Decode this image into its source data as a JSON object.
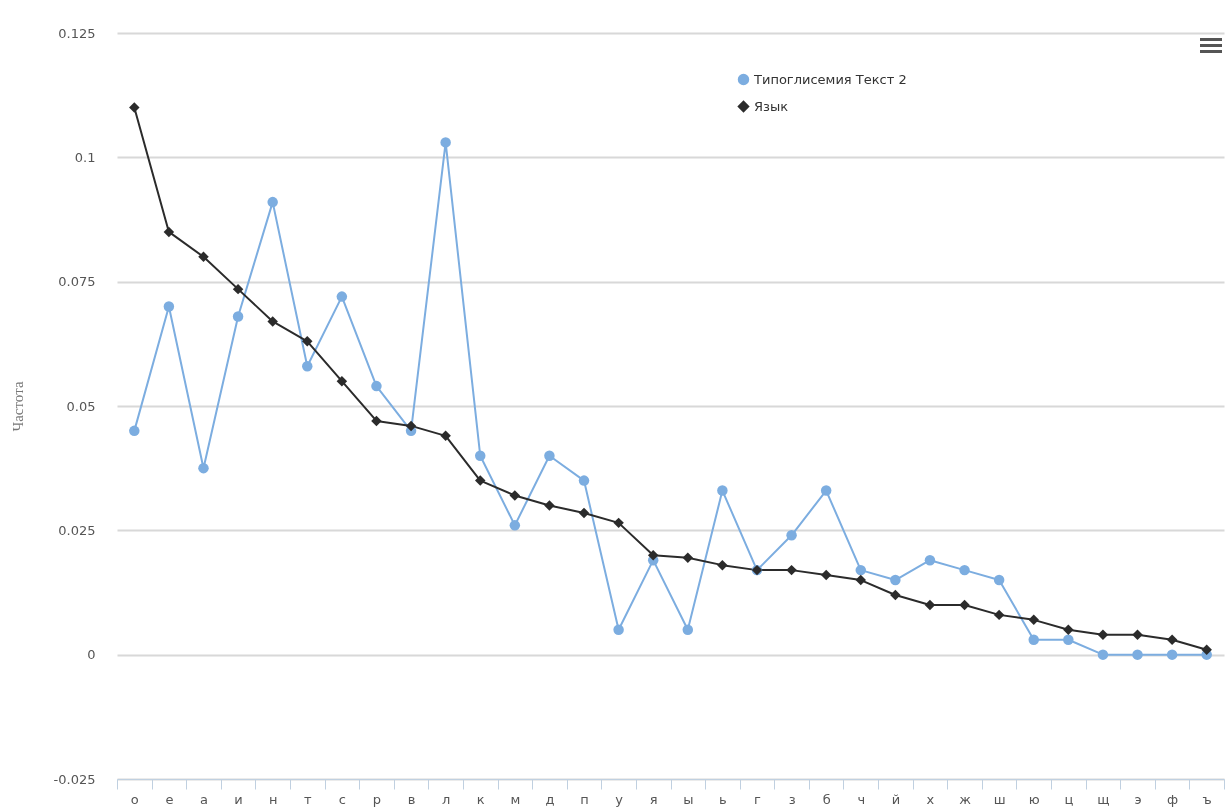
{
  "chart_data": {
    "type": "line",
    "ylabel": "Частота",
    "categories": [
      "о",
      "е",
      "а",
      "и",
      "н",
      "т",
      "с",
      "р",
      "в",
      "л",
      "к",
      "м",
      "д",
      "п",
      "у",
      "я",
      "ы",
      "ь",
      "г",
      "з",
      "б",
      "ч",
      "й",
      "х",
      "ж",
      "ш",
      "ю",
      "ц",
      "щ",
      "э",
      "ф",
      "ъ"
    ],
    "series": [
      {
        "name": "Типоглисемия Текст 2",
        "color": "#7cade0",
        "marker": "circle",
        "values": [
          0.045,
          0.07,
          0.0375,
          0.068,
          0.091,
          0.058,
          0.072,
          0.054,
          0.045,
          0.103,
          0.04,
          0.026,
          0.04,
          0.035,
          0.005,
          0.019,
          0.005,
          0.033,
          0.017,
          0.024,
          0.033,
          0.017,
          0.015,
          0.019,
          0.017,
          0.015,
          0.003,
          0.003,
          0,
          0,
          0,
          0
        ]
      },
      {
        "name": "Язык",
        "color": "#2b2b2b",
        "marker": "diamond",
        "values": [
          0.11,
          0.085,
          0.08,
          0.0735,
          0.067,
          0.063,
          0.055,
          0.047,
          0.046,
          0.044,
          0.035,
          0.032,
          0.03,
          0.0285,
          0.0265,
          0.02,
          0.0195,
          0.018,
          0.017,
          0.017,
          0.016,
          0.015,
          0.012,
          0.01,
          0.01,
          0.008,
          0.007,
          0.005,
          0.004,
          0.004,
          0.003,
          0.001
        ]
      }
    ],
    "ylim": [
      -0.025,
      0.125
    ],
    "yticks": [
      -0.025,
      0,
      0.025,
      0.05,
      0.075,
      0.1,
      0.125
    ],
    "grid": "y",
    "legend": "top right"
  }
}
